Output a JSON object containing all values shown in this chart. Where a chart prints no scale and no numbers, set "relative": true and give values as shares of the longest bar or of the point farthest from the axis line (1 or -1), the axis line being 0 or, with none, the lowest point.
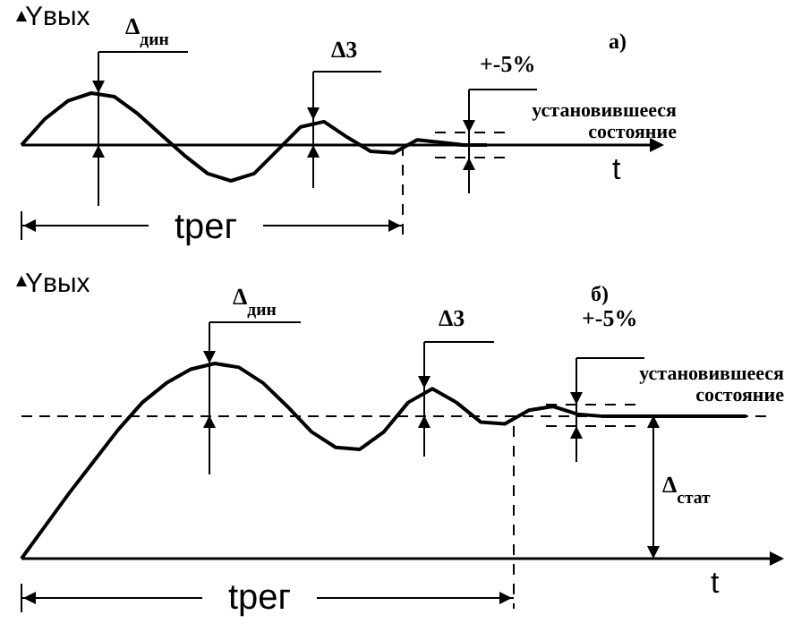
{
  "chart_data": [
    {
      "type": "line",
      "title": "а)",
      "xlabel": "t",
      "ylabel": "Yвых",
      "relative": true,
      "marker": "none",
      "line_style": "solid",
      "categories": [
        null,
        null,
        null,
        null,
        null,
        null,
        null,
        null,
        null,
        null,
        null,
        null,
        null,
        null,
        null,
        null,
        null,
        null,
        null,
        null,
        null,
        null,
        null,
        null,
        null,
        null,
        null,
        null
      ],
      "series": [
        {
          "color": "#000000",
          "values": [
            0,
            0.5,
            0.85,
            1,
            0.93,
            0.6,
            0.2,
            -0.2,
            -0.55,
            -0.69,
            -0.55,
            -0.1,
            0.35,
            0.45,
            0.15,
            -0.12,
            -0.15,
            0.1,
            0.05,
            0,
            0,
            null,
            null,
            null,
            null,
            null,
            null,
            null
          ]
        }
      ],
      "annotations": [
        "Δ$_{дин}$",
        "Δ3",
        "+-5%",
        "установившееся состояние",
        "tрег"
      ]
    },
    {
      "type": "line",
      "title": "б)",
      "xlabel": "t",
      "ylabel": "Yвых",
      "relative": true,
      "marker": "none",
      "line_style": "solid",
      "categories": [
        null,
        null,
        null,
        null,
        null,
        null,
        null,
        null,
        null,
        null,
        null,
        null,
        null,
        null,
        null,
        null,
        null,
        null,
        null,
        null,
        null,
        null,
        null,
        null,
        null,
        null,
        null,
        null,
        null,
        null,
        null,
        null
      ],
      "series": [
        {
          "color": "#000000",
          "values": [
            0,
            0.17,
            0.34,
            0.5,
            0.66,
            0.8,
            0.9,
            0.97,
            1,
            0.98,
            0.9,
            0.78,
            0.65,
            0.57,
            0.56,
            0.65,
            0.8,
            0.87,
            0.8,
            0.7,
            0.69,
            0.76,
            0.78,
            0.74,
            0.73,
            0.73,
            0.73,
            0.73,
            0.73,
            0.73,
            0.73,
            null
          ]
        }
      ],
      "ref_lines": [
        {
          "axis": "y",
          "value": 0.73,
          "line_style": "dashed"
        }
      ],
      "annotations": [
        "Δ$_{дин}$",
        "Δ3",
        "+-5%",
        "установившееся состояние",
        "Δ$_{стат}$",
        "tрег"
      ]
    }
  ]
}
